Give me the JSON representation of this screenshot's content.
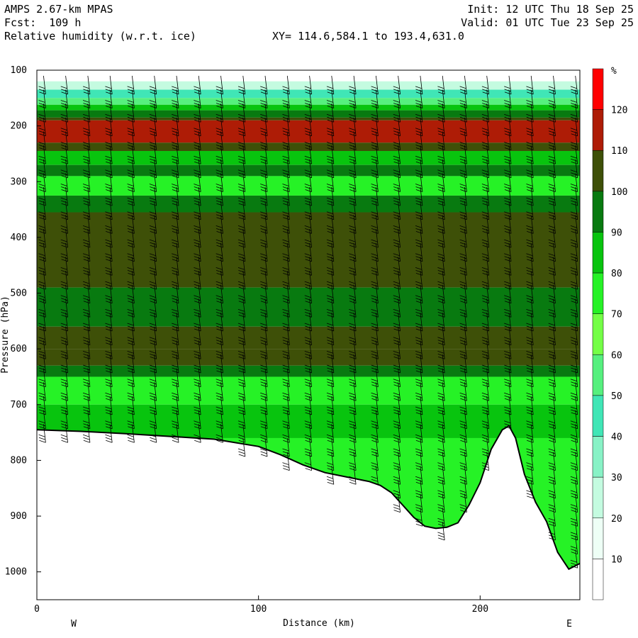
{
  "header": {
    "model": "AMPS 2.67-km MPAS",
    "forecast": "Fcst:  109 h",
    "field": "Relative humidity (w.r.t. ice)",
    "init": "Init: 12 UTC Thu 18 Sep 25",
    "valid": "Valid: 01 UTC Tue 23 Sep 25",
    "section": "XY= 114.6,584.1 to 193.4,631.0"
  },
  "chart_data": {
    "type": "heatmap",
    "xlabel": "Distance (km)",
    "ylabel": "Pressure (hPa)",
    "xlim": [
      0,
      245
    ],
    "ylim": [
      100,
      1050
    ],
    "y_inverted": true,
    "x_ticks": [
      "0",
      "100",
      "200"
    ],
    "y_ticks": [
      "100",
      "200",
      "300",
      "400",
      "500",
      "600",
      "700",
      "800",
      "900",
      "1000"
    ],
    "x_end_labels": {
      "left": "W",
      "right": "E"
    },
    "colorbar": {
      "unit": "%",
      "levels": [
        "10",
        "20",
        "30",
        "40",
        "50",
        "60",
        "70",
        "80",
        "90",
        "100",
        "110",
        "120"
      ],
      "colors": [
        "#ffffff",
        "#eefff6",
        "#c4fbe0",
        "#88f2c6",
        "#40e6b6",
        "#56f07e",
        "#74ff46",
        "#26f226",
        "#08c40e",
        "#087a10",
        "#3e5008",
        "#ae1c06",
        "#ff0000"
      ]
    },
    "layers": [
      {
        "p_top": 100,
        "p_bot": 120,
        "rh": 5
      },
      {
        "p_top": 120,
        "p_bot": 135,
        "rh": 28
      },
      {
        "p_top": 135,
        "p_bot": 150,
        "rh": 42
      },
      {
        "p_top": 150,
        "p_bot": 162,
        "rh": 58
      },
      {
        "p_top": 162,
        "p_bot": 172,
        "rh": 82
      },
      {
        "p_top": 172,
        "p_bot": 185,
        "rh": 95
      },
      {
        "p_top": 185,
        "p_bot": 190,
        "rh": 105
      },
      {
        "p_top": 190,
        "p_bot": 230,
        "rh": 115
      },
      {
        "p_top": 230,
        "p_bot": 245,
        "rh": 105
      },
      {
        "p_top": 245,
        "p_bot": 270,
        "rh": 85
      },
      {
        "p_top": 270,
        "p_bot": 290,
        "rh": 98
      },
      {
        "p_top": 290,
        "p_bot": 325,
        "rh": 78
      },
      {
        "p_top": 325,
        "p_bot": 355,
        "rh": 95
      },
      {
        "p_top": 355,
        "p_bot": 490,
        "rh": 105
      },
      {
        "p_top": 490,
        "p_bot": 560,
        "rh": 97
      },
      {
        "p_top": 560,
        "p_bot": 600,
        "rh": 105
      },
      {
        "p_top": 600,
        "p_bot": 630,
        "rh": 102
      },
      {
        "p_top": 630,
        "p_bot": 650,
        "rh": 92
      },
      {
        "p_top": 650,
        "p_bot": 700,
        "rh": 75
      },
      {
        "p_top": 700,
        "p_bot": 760,
        "rh": 82
      },
      {
        "p_top": 760,
        "p_bot": 1000,
        "rh": 72
      }
    ],
    "surface_pressure": {
      "x": [
        0,
        20,
        40,
        60,
        80,
        100,
        110,
        120,
        130,
        140,
        150,
        155,
        160,
        165,
        170,
        175,
        180,
        185,
        190,
        195,
        200,
        205,
        210,
        213,
        216,
        220,
        225,
        230,
        235,
        240,
        245
      ],
      "p": [
        745,
        748,
        752,
        757,
        762,
        775,
        790,
        808,
        822,
        830,
        838,
        845,
        858,
        880,
        902,
        918,
        922,
        920,
        912,
        880,
        840,
        780,
        745,
        738,
        760,
        825,
        875,
        910,
        965,
        995,
        985
      ]
    }
  }
}
